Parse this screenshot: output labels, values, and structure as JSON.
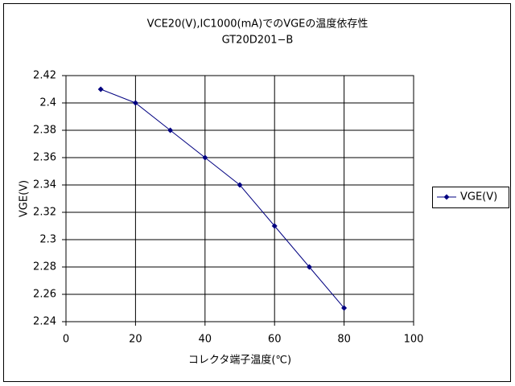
{
  "chart_data": {
    "type": "line",
    "title": "VCE20(V),IC1000(mA)でのVGEの温度依存性",
    "subtitle": "GT20D201−B",
    "x_label": "コレクタ端子温度(℃)",
    "y_label": "VGE(V)",
    "x": [
      10,
      20,
      30,
      40,
      50,
      60,
      70,
      80
    ],
    "series": [
      {
        "name": "VGE(V)",
        "color": "#000080",
        "values": [
          2.41,
          2.4,
          2.38,
          2.36,
          2.34,
          2.31,
          2.28,
          2.25
        ]
      }
    ],
    "xlim": [
      0,
      100
    ],
    "xticks": [
      0,
      20,
      40,
      60,
      80,
      100
    ],
    "ylim": [
      2.24,
      2.42
    ],
    "yticks": [
      2.24,
      2.26,
      2.28,
      2.3,
      2.32,
      2.34,
      2.36,
      2.38,
      2.4,
      2.42
    ],
    "grid": true,
    "legend": "right"
  }
}
